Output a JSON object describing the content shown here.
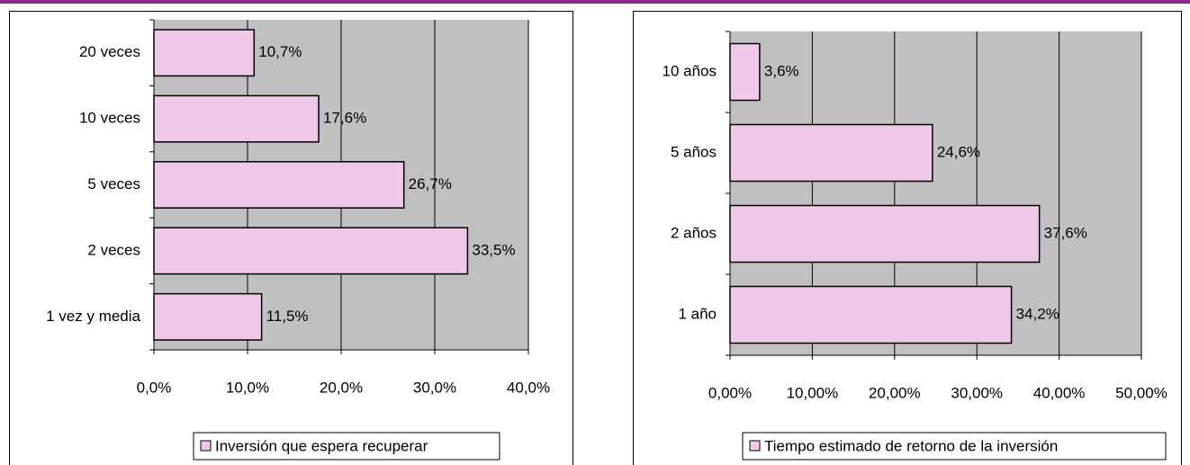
{
  "chart_data": [
    {
      "type": "bar",
      "orientation": "horizontal",
      "categories": [
        "1 vez y media",
        "2 veces",
        "5 veces",
        "10 veces",
        "20 veces"
      ],
      "series": [
        {
          "name": "Inversión que espera recuperar",
          "color": "#f0c8e8",
          "values": [
            11.5,
            33.5,
            26.7,
            17.6,
            10.7
          ],
          "value_labels": [
            "11,5%",
            "33,5%",
            "26,7%",
            "17,6%",
            "10,7%"
          ]
        }
      ],
      "xlim": [
        0,
        40
      ],
      "xticks": [
        {
          "value": 0,
          "label": "0,0%"
        },
        {
          "value": 10,
          "label": "10,0%"
        },
        {
          "value": 20,
          "label": "20,0%"
        },
        {
          "value": 30,
          "label": "30,0%"
        },
        {
          "value": 40,
          "label": "40,0%"
        }
      ],
      "grid": true,
      "legend": "bottom"
    },
    {
      "type": "bar",
      "orientation": "horizontal",
      "categories": [
        "1 año",
        "2 años",
        "5 años",
        "10 años"
      ],
      "series": [
        {
          "name": "Tiempo estimado de retorno de la inversión",
          "color": "#f0c8e8",
          "values": [
            34.2,
            37.6,
            24.6,
            3.6
          ],
          "value_labels": [
            "34,2%",
            "37,6%",
            "24,6%",
            "3,6%"
          ]
        }
      ],
      "xlim": [
        0,
        50
      ],
      "xticks": [
        {
          "value": 0,
          "label": "0,00%"
        },
        {
          "value": 10,
          "label": "10,00%"
        },
        {
          "value": 20,
          "label": "20,00%"
        },
        {
          "value": 30,
          "label": "30,00%"
        },
        {
          "value": 40,
          "label": "40,00%"
        },
        {
          "value": 50,
          "label": "50,00%"
        }
      ],
      "grid": true,
      "legend": "bottom"
    }
  ]
}
